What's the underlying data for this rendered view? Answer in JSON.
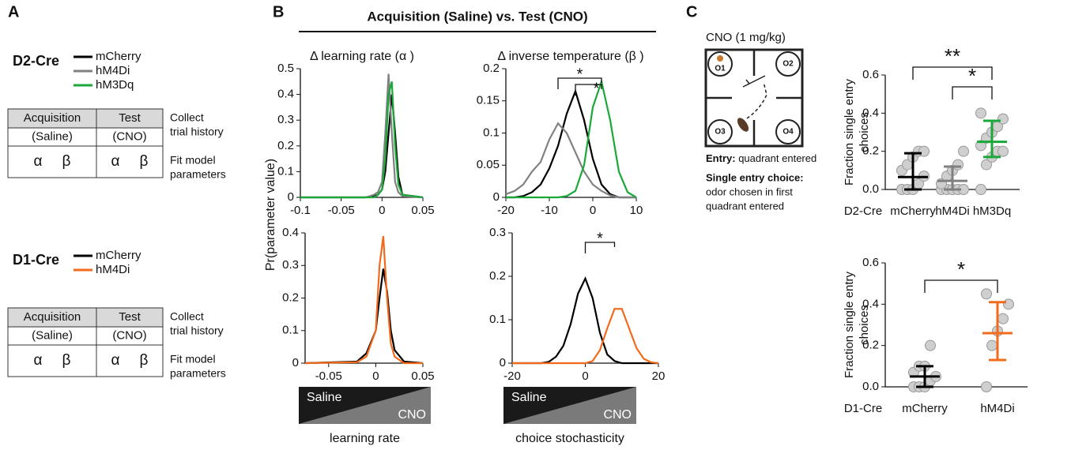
{
  "panel_a": {
    "label": "A",
    "groups": [
      {
        "title": "D2-Cre",
        "table": {
          "rows": [
            [
              "Acquisition",
              "Test"
            ],
            [
              "(Saline)",
              "(CNO)"
            ],
            [
              [
                "α",
                "β"
              ],
              [
                "α",
                "β"
              ]
            ]
          ],
          "notes": [
            [
              "Collect",
              "trial history"
            ],
            [
              "Fit model",
              "parameters"
            ]
          ]
        }
      },
      {
        "title": "D1-Cre",
        "table": {
          "rows": [
            [
              "Acquisition",
              "Test"
            ],
            [
              "(Saline)",
              "(CNO)"
            ],
            [
              [
                "α",
                "β"
              ],
              [
                "α",
                "β"
              ]
            ]
          ],
          "notes": [
            [
              "Collect",
              "trial history"
            ],
            [
              "Fit model",
              "parameters"
            ]
          ]
        }
      }
    ]
  },
  "panel_b": {
    "label": "B",
    "title": "Acquisition (Saline) vs. Test (CNO)",
    "column_titles": [
      "Δ learning rate (α )",
      "Δ inverse temperature (β )"
    ],
    "y_label": "Pr(parameter value)",
    "scales": [
      {
        "left": "Saline",
        "right": "CNO",
        "caption": "learning rate"
      },
      {
        "left": "Saline",
        "right": "CNO",
        "caption": "choice stochasticity"
      }
    ]
  },
  "panel_c": {
    "label": "C",
    "maze": {
      "title": "CNO (1 mg/kg)",
      "odors": [
        "O1",
        "O2",
        "O3",
        "O4"
      ]
    },
    "legend": [
      {
        "term": "Entry:",
        "text": [
          "quadrant entered"
        ]
      },
      {
        "term": "Single entry choice:",
        "text": [
          "odor chosen in first",
          "quadrant entered"
        ]
      }
    ]
  },
  "chart_data": [
    {
      "type": "line",
      "x": [
        -0.1,
        -0.02,
        -0.01,
        -0.005,
        0,
        0.004,
        0.008,
        0.012,
        0.016,
        0.02,
        0.025,
        0.05
      ],
      "series": [
        {
          "name": "mCherry",
          "color": "#000000",
          "values": [
            0,
            0,
            0.005,
            0.01,
            0.03,
            0.1,
            0.25,
            0.4,
            0.25,
            0.08,
            0.01,
            0
          ]
        },
        {
          "name": "hM4Di",
          "color": "#808080",
          "values": [
            0,
            0,
            0.01,
            0.02,
            0.06,
            0.25,
            0.48,
            0.25,
            0.06,
            0.02,
            0.005,
            0
          ]
        },
        {
          "name": "hM3Dq",
          "color": "#1aa83a",
          "values": [
            0,
            0,
            0,
            0.01,
            0.03,
            0.15,
            0.4,
            0.45,
            0.2,
            0.05,
            0.01,
            0
          ]
        }
      ],
      "xlim": [
        -0.1,
        0.05
      ],
      "ylim": [
        0,
        0.5
      ],
      "xticks": [
        -0.1,
        -0.05,
        0,
        0.05
      ],
      "yticks": [
        0,
        0.1,
        0.2,
        0.3,
        0.4,
        0.5
      ]
    },
    {
      "type": "line",
      "x": [
        -20,
        -18,
        -16,
        -14,
        -12,
        -10,
        -8,
        -6,
        -4,
        -2,
        0,
        2,
        4,
        6,
        8,
        10
      ],
      "series": [
        {
          "name": "mCherry",
          "color": "#000000",
          "values": [
            0,
            0,
            0.002,
            0.008,
            0.02,
            0.045,
            0.08,
            0.13,
            0.165,
            0.12,
            0.06,
            0.02,
            0.005,
            0,
            0,
            0
          ]
        },
        {
          "name": "hM4Di",
          "color": "#808080",
          "values": [
            0.005,
            0.01,
            0.02,
            0.04,
            0.055,
            0.09,
            0.115,
            0.1,
            0.07,
            0.04,
            0.02,
            0.01,
            0.003,
            0,
            0,
            0
          ]
        },
        {
          "name": "hM3Dq",
          "color": "#1aa83a",
          "values": [
            0,
            0,
            0,
            0,
            0,
            0,
            0,
            0.002,
            0.01,
            0.05,
            0.14,
            0.18,
            0.12,
            0.04,
            0.008,
            0
          ]
        }
      ],
      "xlim": [
        -20,
        10
      ],
      "ylim": [
        0,
        0.2
      ],
      "xticks": [
        -20,
        -10,
        0,
        10
      ],
      "yticks": [
        0,
        0.05,
        0.1,
        0.15,
        0.2
      ],
      "significance": [
        {
          "label": "*",
          "pair": [
            1,
            2
          ]
        },
        {
          "label": "*",
          "pair": [
            0,
            2
          ]
        }
      ]
    },
    {
      "type": "line",
      "x": [
        -0.075,
        -0.02,
        -0.01,
        0,
        0.004,
        0.008,
        0.012,
        0.016,
        0.02,
        0.03,
        0.05
      ],
      "series": [
        {
          "name": "mCherry",
          "color": "#000000",
          "values": [
            0,
            0.005,
            0.03,
            0.1,
            0.2,
            0.29,
            0.22,
            0.1,
            0.04,
            0.005,
            0
          ]
        },
        {
          "name": "hM4Di",
          "color": "#f26b1d",
          "values": [
            0,
            0.003,
            0.02,
            0.1,
            0.3,
            0.39,
            0.2,
            0.06,
            0.02,
            0,
            0
          ]
        }
      ],
      "xlim": [
        -0.075,
        0.05
      ],
      "ylim": [
        0,
        0.4
      ],
      "xticks": [
        -0.05,
        0,
        0.05
      ],
      "yticks": [
        0,
        0.1,
        0.2,
        0.3,
        0.4
      ]
    },
    {
      "type": "line",
      "x": [
        -20,
        -18,
        -16,
        -14,
        -12,
        -10,
        -8,
        -6,
        -4,
        -2,
        0,
        2,
        4,
        6,
        8,
        10,
        12,
        14,
        16,
        18,
        20
      ],
      "series": [
        {
          "name": "mCherry",
          "color": "#000000",
          "values": [
            0,
            0,
            0,
            0,
            0,
            0.003,
            0.015,
            0.04,
            0.09,
            0.16,
            0.195,
            0.15,
            0.07,
            0.02,
            0.005,
            0,
            0,
            0,
            0,
            0,
            0
          ]
        },
        {
          "name": "hM4Di",
          "color": "#f26b1d",
          "values": [
            0,
            0,
            0,
            0,
            0,
            0,
            0,
            0,
            0,
            0,
            0,
            0.005,
            0.03,
            0.08,
            0.125,
            0.125,
            0.08,
            0.035,
            0.01,
            0.002,
            0
          ]
        }
      ],
      "xlim": [
        -20,
        20
      ],
      "ylim": [
        0,
        0.3
      ],
      "xticks": [
        -20,
        0,
        20
      ],
      "yticks": [
        0,
        0.1,
        0.2,
        0.3
      ],
      "significance": [
        {
          "label": "*",
          "pair": [
            0,
            1
          ]
        }
      ]
    },
    {
      "type": "dot",
      "group": "D2-Cre",
      "y_label": [
        "Fraction single entry",
        "choices"
      ],
      "categories": [
        "mCherry",
        "hM4Di",
        "hM3Dq"
      ],
      "colors": [
        "#000000",
        "#808080",
        "#1aa83a"
      ],
      "values": [
        [
          0,
          0,
          0,
          0.03,
          0.07,
          0.1,
          0.13,
          0.17,
          0.2,
          0.2
        ],
        [
          0,
          0,
          0,
          0,
          0,
          0.03,
          0.07,
          0.1,
          0.13,
          0.2
        ],
        [
          0,
          0.13,
          0.17,
          0.2,
          0.2,
          0.23,
          0.27,
          0.3,
          0.33,
          0.37,
          0.4
        ]
      ],
      "means": [
        0.065,
        0.045,
        0.25
      ],
      "ci_low": [
        0,
        0,
        0.17
      ],
      "ci_high": [
        0.19,
        0.12,
        0.36
      ],
      "ylim": [
        0,
        0.6
      ],
      "yticks": [
        {
          "value": 0,
          "label": "0.0"
        },
        0.2,
        0.4,
        0.6
      ],
      "significance": [
        {
          "label": "**",
          "pair": [
            0,
            2
          ]
        },
        {
          "label": "*",
          "pair": [
            1,
            2
          ]
        }
      ]
    },
    {
      "type": "dot",
      "group": "D1-Cre",
      "y_label": [
        "Fraction single entry",
        "choices"
      ],
      "categories": [
        "mCherry",
        "hM4Di"
      ],
      "colors": [
        "#000000",
        "#f26b1d"
      ],
      "values": [
        [
          0,
          0,
          0,
          0.03,
          0.05,
          0.07,
          0.1,
          0.1,
          0.2
        ],
        [
          0,
          0.2,
          0.27,
          0.33,
          0.4,
          0.45
        ]
      ],
      "means": [
        0.05,
        0.26
      ],
      "ci_low": [
        0,
        0.13
      ],
      "ci_high": [
        0.1,
        0.41
      ],
      "ylim": [
        0,
        0.6
      ],
      "yticks": [
        {
          "value": 0,
          "label": "0.0"
        },
        0.2,
        0.4,
        0.6
      ],
      "significance": [
        {
          "label": "*",
          "pair": [
            0,
            1
          ]
        }
      ]
    }
  ]
}
